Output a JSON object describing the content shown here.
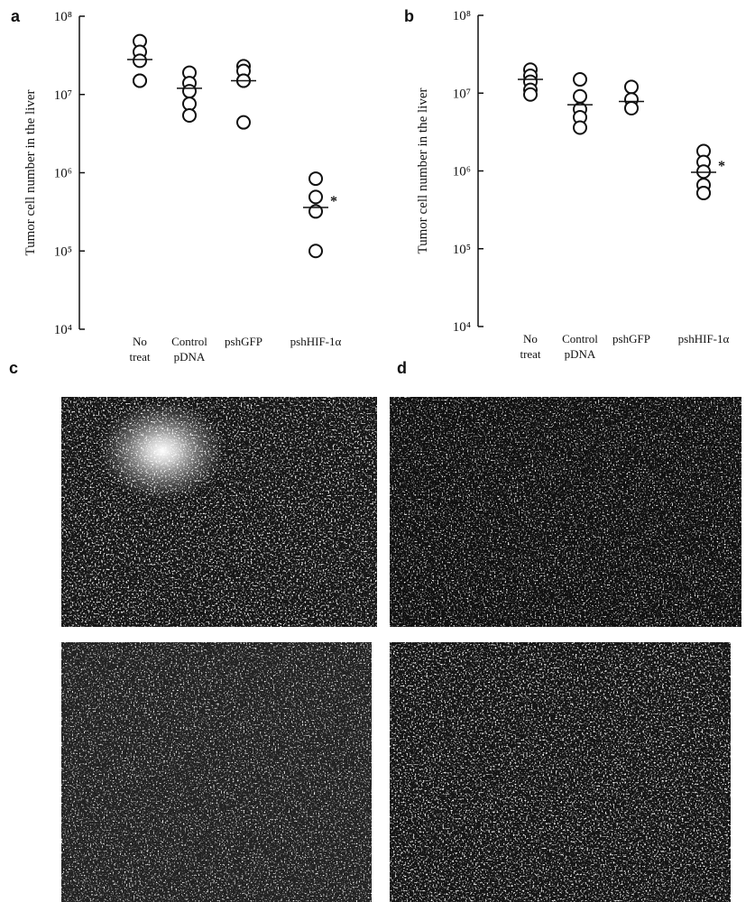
{
  "chart_data": [
    {
      "type": "strip",
      "panel_label": "a",
      "ylabel": "Tumor cell number in the liver",
      "categories": [
        [
          "No",
          "treat"
        ],
        [
          "Control",
          "pDNA"
        ],
        [
          "pshGFP"
        ],
        [
          "pshHIF-1α"
        ]
      ],
      "points": [
        [
          48000000,
          35000000,
          27000000,
          15000000,
          15000000
        ],
        [
          19000000,
          14000000,
          11000000,
          7600000,
          5400000
        ],
        [
          23000000,
          20000000,
          15000000,
          15000000,
          4400000
        ],
        [
          840000,
          490000,
          320000,
          100000
        ]
      ],
      "means": [
        28000000,
        12000000,
        15000000,
        360000
      ],
      "annotation": "*",
      "log_y": true,
      "ylim": [
        10000,
        100000000
      ],
      "yticks": [
        {
          "value": 10000,
          "label": "10⁴"
        },
        {
          "value": 100000,
          "label": "10⁵"
        },
        {
          "value": 1000000,
          "label": "10⁶"
        },
        {
          "value": 10000000,
          "label": "10⁷"
        },
        {
          "value": 100000000,
          "label": "10⁸"
        }
      ]
    },
    {
      "type": "strip",
      "panel_label": "b",
      "ylabel": "Tumor cell number in the liver",
      "categories": [
        [
          "No",
          "treat"
        ],
        [
          "Control",
          "pDNA"
        ],
        [
          "pshGFP"
        ],
        [
          "pshHIF-1α"
        ]
      ],
      "points": [
        [
          20000000,
          16700000,
          14000000,
          11000000,
          9600000
        ],
        [
          15000000,
          9100000,
          6200000,
          4900000,
          3600000
        ],
        [
          12000000,
          8300000,
          6400000
        ],
        [
          1800000,
          1300000,
          980000,
          660000,
          520000,
          520000
        ]
      ],
      "means": [
        15000000,
        7100000,
        7800000,
        960000
      ],
      "annotation": "*",
      "log_y": true,
      "ylim": [
        10000,
        100000000
      ],
      "yticks": [
        {
          "value": 10000,
          "label": "10⁴"
        },
        {
          "value": 100000,
          "label": "10⁵"
        },
        {
          "value": 1000000,
          "label": "10⁶"
        },
        {
          "value": 10000000,
          "label": "10⁷"
        },
        {
          "value": 100000000,
          "label": "10⁸"
        }
      ]
    }
  ],
  "images": [
    {
      "panel_label": "c"
    },
    {
      "panel_label": "d"
    }
  ]
}
